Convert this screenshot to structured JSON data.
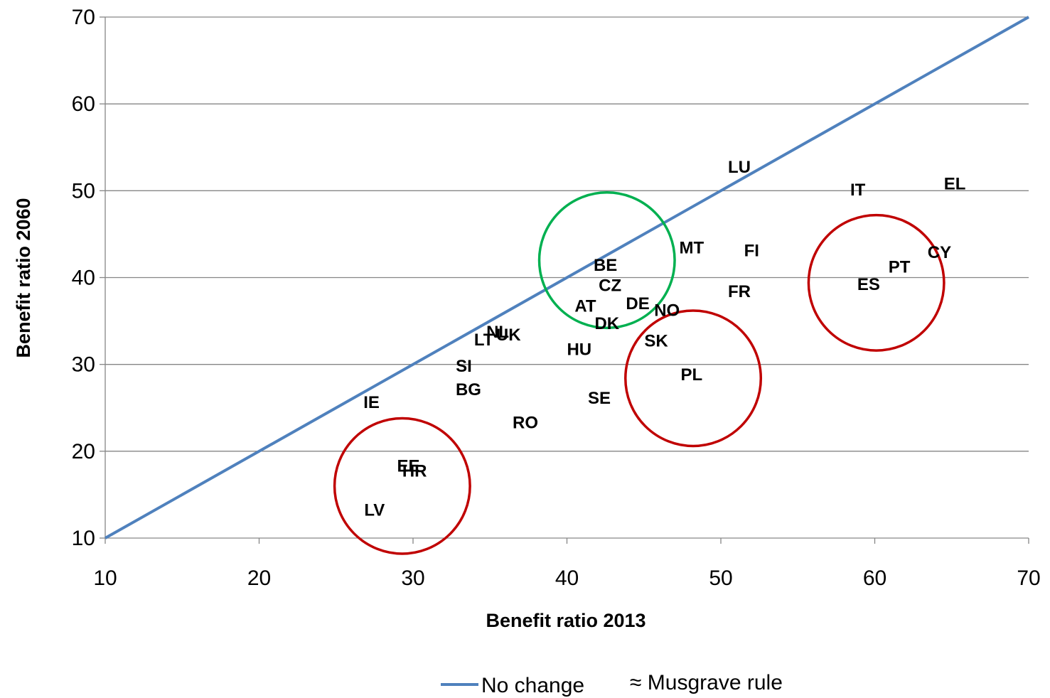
{
  "chart_data": {
    "type": "scatter",
    "title": "",
    "xlabel": "Benefit ratio 2013",
    "ylabel": "Benefit ratio 2060",
    "xlim": [
      10,
      70
    ],
    "ylim": [
      10,
      70
    ],
    "xticks": [
      "10",
      "20",
      "30",
      "40",
      "50",
      "60",
      "70"
    ],
    "yticks": [
      "10",
      "20",
      "30",
      "40",
      "50",
      "60",
      "70"
    ],
    "grid": "horizontal",
    "points": [
      {
        "label": "LU",
        "x": 51.2,
        "y": 52.8
      },
      {
        "label": "IT",
        "x": 58.9,
        "y": 50.2
      },
      {
        "label": "EL",
        "x": 65.2,
        "y": 50.9
      },
      {
        "label": "MT",
        "x": 48.1,
        "y": 43.5
      },
      {
        "label": "FI",
        "x": 52.0,
        "y": 43.2
      },
      {
        "label": "CY",
        "x": 64.2,
        "y": 43.0
      },
      {
        "label": "PT",
        "x": 61.6,
        "y": 41.3
      },
      {
        "label": "ES",
        "x": 59.6,
        "y": 39.3
      },
      {
        "label": "FR",
        "x": 51.2,
        "y": 38.5
      },
      {
        "label": "BE",
        "x": 42.5,
        "y": 41.5
      },
      {
        "label": "CZ",
        "x": 42.8,
        "y": 39.2
      },
      {
        "label": "AT",
        "x": 41.2,
        "y": 36.8
      },
      {
        "label": "DE",
        "x": 44.6,
        "y": 37.1
      },
      {
        "label": "NO",
        "x": 46.5,
        "y": 36.3
      },
      {
        "label": "DK",
        "x": 42.6,
        "y": 34.8
      },
      {
        "label": "SK",
        "x": 45.8,
        "y": 32.8
      },
      {
        "label": "NL",
        "x": 35.5,
        "y": 33.8
      },
      {
        "label": "UK",
        "x": 36.2,
        "y": 33.5
      },
      {
        "label": "LT",
        "x": 34.6,
        "y": 32.9
      },
      {
        "label": "HU",
        "x": 40.8,
        "y": 31.8
      },
      {
        "label": "SI",
        "x": 33.3,
        "y": 29.9
      },
      {
        "label": "PL",
        "x": 48.1,
        "y": 28.9
      },
      {
        "label": "BG",
        "x": 33.6,
        "y": 27.2
      },
      {
        "label": "SE",
        "x": 42.1,
        "y": 26.2
      },
      {
        "label": "IE",
        "x": 27.3,
        "y": 25.7
      },
      {
        "label": "RO",
        "x": 37.3,
        "y": 23.4
      },
      {
        "label": "EE",
        "x": 29.7,
        "y": 18.4
      },
      {
        "label": "HR",
        "x": 30.1,
        "y": 17.8
      },
      {
        "label": "LV",
        "x": 27.5,
        "y": 13.3
      }
    ],
    "reference_line": {
      "name": "No change",
      "from": [
        10,
        10
      ],
      "to": [
        70,
        70
      ],
      "color": "#4f81bd"
    },
    "circles": [
      {
        "cx": 42.6,
        "cy": 42.0,
        "r": 4.4,
        "color": "#00b050"
      },
      {
        "cx": 29.3,
        "cy": 16.0,
        "r": 4.4,
        "color": "#c00000"
      },
      {
        "cx": 48.2,
        "cy": 28.4,
        "r": 4.4,
        "color": "#c00000"
      },
      {
        "cx": 60.1,
        "cy": 39.4,
        "r": 4.4,
        "color": "#c00000"
      }
    ],
    "legend": {
      "placement": "bottom",
      "line_entry": "No change",
      "extra_entry": "≈ Musgrave rule"
    },
    "colors": {
      "line": "#4f81bd",
      "grid": "#868686",
      "green_circle": "#00b050",
      "red_circle": "#c00000"
    }
  }
}
